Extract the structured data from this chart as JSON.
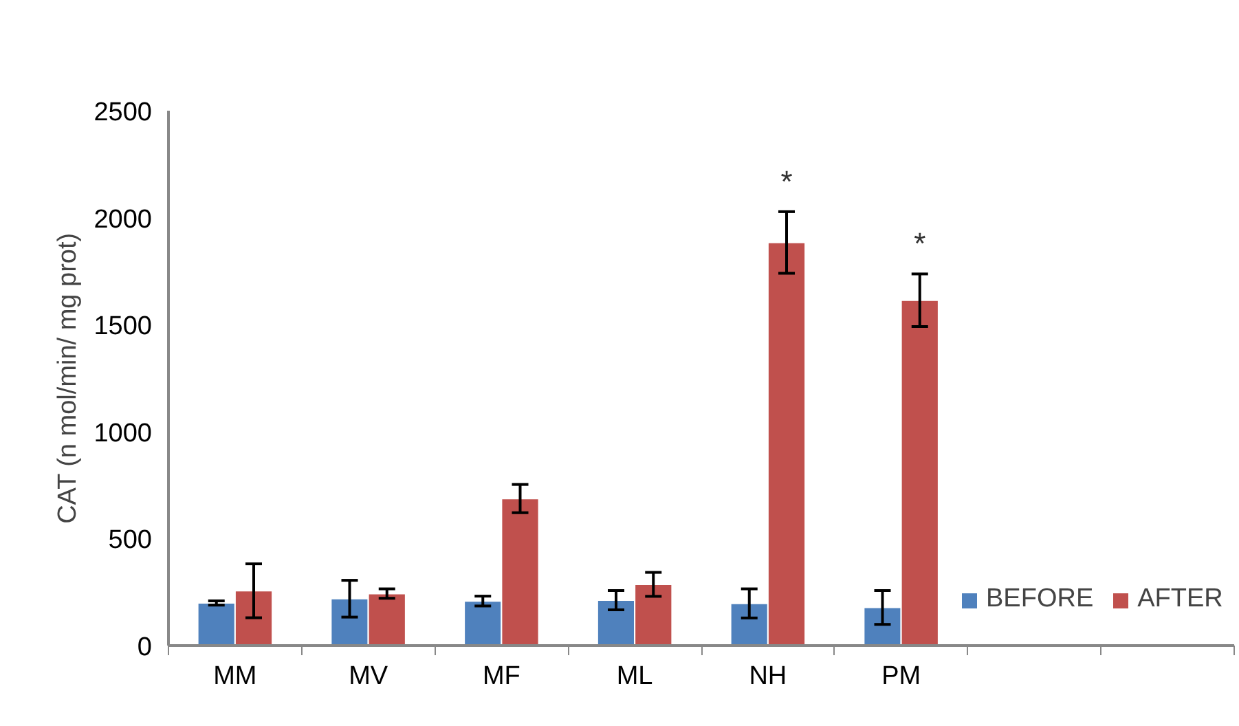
{
  "chart_data": {
    "type": "bar",
    "ylabel": "CAT (n mol/min/ mg prot)",
    "categories": [
      "MM",
      "MV",
      "MF",
      "ML",
      "NH",
      "PM",
      null,
      null
    ],
    "series": [
      {
        "name": "BEFORE",
        "color": "#4f81bd",
        "values": [
          199,
          219,
          208,
          212,
          197,
          178,
          null,
          null
        ],
        "errors": [
          10,
          86,
          23,
          45,
          68,
          79,
          null,
          null
        ]
      },
      {
        "name": "AFTER",
        "color": "#c0504d",
        "values": [
          256,
          243,
          687,
          286,
          1884,
          1614,
          null,
          null
        ],
        "errors": [
          126,
          22,
          66,
          56,
          144,
          123,
          null,
          null
        ]
      }
    ],
    "ylim": [
      0,
      2500
    ],
    "yticks": [
      0,
      500,
      1000,
      1500,
      2000,
      2500
    ],
    "grid": false,
    "legend": "bottom right",
    "annotations": [
      {
        "text": "*",
        "x": "NH",
        "y": 1884
      },
      {
        "text": "*",
        "x": "PM",
        "y": 1614
      }
    ]
  }
}
